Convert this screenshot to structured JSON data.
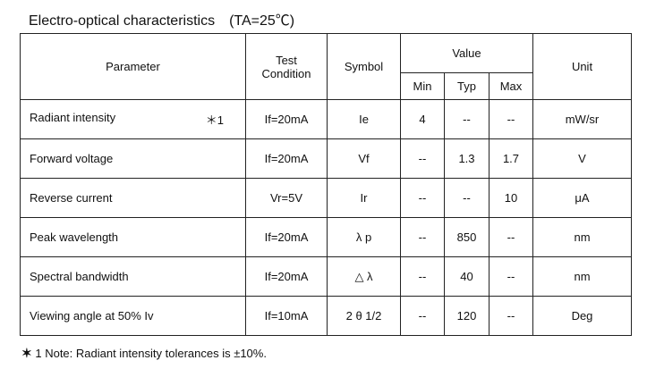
{
  "title": "Electro-optical characteristics　(TA=25℃)",
  "table": {
    "headers": {
      "parameter": "Parameter",
      "condition": "Test Condition",
      "symbol": "Symbol",
      "value": "Value",
      "min": "Min",
      "typ": "Typ",
      "max": "Max",
      "unit": "Unit"
    },
    "rows": [
      {
        "parameter": "Radiant intensity",
        "mark": "＊1",
        "condition": "If=20mA",
        "symbol": "Ie",
        "min": "4",
        "typ": "--",
        "max": "--",
        "unit": "mW/sr"
      },
      {
        "parameter": "Forward voltage",
        "condition": "If=20mA",
        "symbol": "Vf",
        "min": "--",
        "typ": "1.3",
        "max": "1.7",
        "unit": "V"
      },
      {
        "parameter": "Reverse current",
        "condition": "Vr=5V",
        "symbol": "Ir",
        "min": "--",
        "typ": "--",
        "max": "10",
        "unit": "μA"
      },
      {
        "parameter": "Peak wavelength",
        "condition": "If=20mA",
        "symbol": "λ p",
        "min": "--",
        "typ": "850",
        "max": "--",
        "unit": "nm"
      },
      {
        "parameter": "Spectral bandwidth",
        "condition": "If=20mA",
        "symbol": "△ λ",
        "min": "--",
        "typ": "40",
        "max": "--",
        "unit": "nm"
      },
      {
        "parameter": "Viewing angle at 50% Iv",
        "condition": "If=10mA",
        "symbol": "2 θ 1/2",
        "min": "--",
        "typ": "120",
        "max": "--",
        "unit": "Deg"
      }
    ]
  },
  "footnote": {
    "mark": "✶",
    "text": "1 Note: Radiant intensity tolerances is ±10%."
  }
}
